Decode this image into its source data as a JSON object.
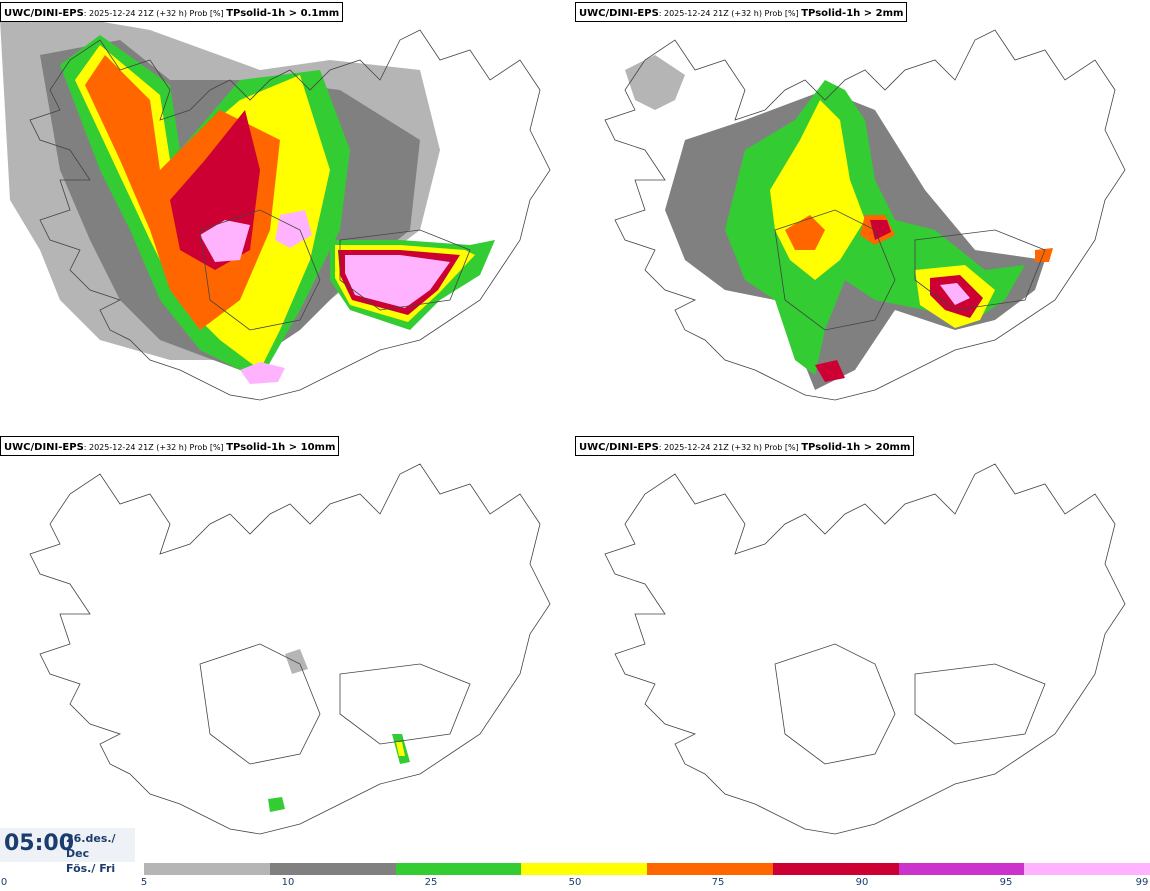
{
  "panels": [
    {
      "model": "UWC/DINI-EPS",
      "run": ": 2025-12-24 21Z (+32 h) Prob [%] ",
      "param": "TPsolid-1h > 0.1mm"
    },
    {
      "model": "UWC/DINI-EPS",
      "run": ": 2025-12-24 21Z (+32 h) Prob [%] ",
      "param": "TPsolid-1h > 2mm"
    },
    {
      "model": "UWC/DINI-EPS",
      "run": ": 2025-12-24 21Z (+32 h) Prob [%] ",
      "param": "TPsolid-1h > 10mm"
    },
    {
      "model": "UWC/DINI-EPS",
      "run": ": 2025-12-24 21Z (+32 h) Prob [%] ",
      "param": "TPsolid-1h > 20mm"
    }
  ],
  "time": {
    "value": "05:00",
    "date_line1": "26.des./ Dec",
    "date_line2": "Fös./ Fri"
  },
  "legend": {
    "ticks": [
      "0",
      "5",
      "10",
      "25",
      "50",
      "75",
      "90",
      "95",
      "99"
    ],
    "colors": [
      "#b5b5b5",
      "#808080",
      "#33cc33",
      "#ffff00",
      "#ff6600",
      "#cc0033",
      "#cc33cc",
      "#ffb3ff"
    ]
  }
}
